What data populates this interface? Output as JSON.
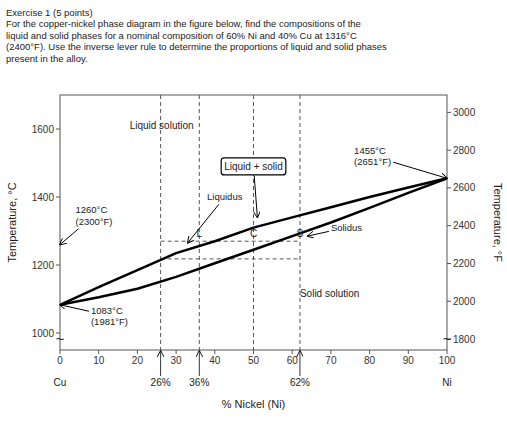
{
  "chart_data": {
    "type": "line",
    "title": "Exercise 1 (5 points)\nFor the copper-nickel phase diagram in the figure below, find the compositions of the\nliquid and solid phases for a nominal composition of 60% Ni and 40% Cu at 1316°C\n(2400°F). Use the inverse lever rule to determine the proportions of liquid and solid phases\npresent in the alloy.",
    "x_label": "% Nickel (Ni)",
    "y_label": "Temperature, °C",
    "y2_label": "Temperature, °F",
    "xlim": [
      0,
      100
    ],
    "ylim": [
      950,
      1700
    ],
    "y2lim": [
      1742,
      3092
    ],
    "xticks": [
      0,
      10,
      20,
      30,
      40,
      50,
      60,
      70,
      80,
      90,
      100
    ],
    "yticks": [
      1000,
      1200,
      1400,
      1600
    ],
    "y2ticks": [
      1800,
      2000,
      2200,
      2400,
      2600,
      2800,
      3000
    ],
    "series": [
      {
        "color": "#000000",
        "x": [
          0,
          10,
          20,
          30,
          40,
          50,
          60,
          70,
          80,
          90,
          100
        ],
        "values": [
          1083,
          1135,
          1185,
          1235,
          1270,
          1310,
          1340,
          1370,
          1400,
          1428,
          1455
        ]
      },
      {
        "color": "#000000",
        "x": [
          0,
          10,
          20,
          30,
          40,
          50,
          60,
          70,
          80,
          90,
          100
        ],
        "values": [
          1083,
          1105,
          1130,
          1165,
          1205,
          1245,
          1285,
          1325,
          1368,
          1412,
          1455
        ]
      }
    ],
    "tie_lines": {
      "x_start": 26,
      "x_end": 62,
      "y": [
        1270,
        1218
      ]
    },
    "vertical_lines": [
      {
        "x": 26
      },
      {
        "x": 36,
        "label": "L"
      },
      {
        "x": 50,
        "label": "C"
      },
      {
        "x": 62,
        "label": "S"
      }
    ],
    "pct_labels": [
      {
        "x": 26,
        "label": "26%"
      },
      {
        "x": 36,
        "label": "36%"
      },
      {
        "x": 62,
        "label": "62%"
      }
    ],
    "end_labels": [
      {
        "x": 0,
        "label": "Cu"
      },
      {
        "x": 100,
        "label": "Ni"
      }
    ],
    "region_labels": [
      {
        "text": "Liquid solution",
        "x": 18,
        "y": 1610
      },
      {
        "text": "Solid solution",
        "x": 62,
        "y": 1115
      }
    ],
    "box_annotation": {
      "text": "Liquid + solid",
      "x": 50,
      "y": 1490,
      "point": [
        51,
        1340
      ]
    },
    "annotations": [
      {
        "text": "Liquidus",
        "x": 38,
        "y": 1400,
        "point": [
          33,
          1265
        ]
      },
      {
        "text": "Solidus",
        "x": 70,
        "y": 1310,
        "point": [
          64,
          1285
        ]
      },
      {
        "text": "1260°C\n(2300°F)",
        "x": 4,
        "y": 1345,
        "point": [
          0,
          1260
        ]
      },
      {
        "text": "1083°C\n(1981°F)",
        "x": 8,
        "y": 1050,
        "point": [
          0,
          1083
        ]
      },
      {
        "text": "1455°C\n(2651°F)",
        "x": 76,
        "y": 1520,
        "point": [
          100,
          1455
        ]
      }
    ],
    "axis_break_label": "~"
  }
}
